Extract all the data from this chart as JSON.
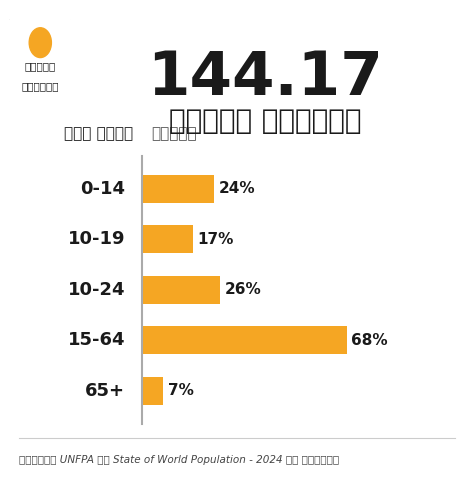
{
  "title_number": "144.17",
  "title_sub": "करोड़ भारतीय",
  "col_label_left": "आयु वर्ग",
  "col_label_right": "आबादी",
  "categories": [
    "0-14",
    "10-19",
    "10-24",
    "15-64",
    "65+"
  ],
  "values": [
    24,
    17,
    26,
    68,
    7
  ],
  "bar_color": "#F5A623",
  "bg_color": "#FFFFFF",
  "text_color": "#1a1a1a",
  "footnote": "आंकड़े UNFPA की State of World Population - 2024 के अनुसार",
  "logo_text_line1": "दैनिक",
  "logo_text_line2": "भास्कर",
  "divider_color": "#AAAAAA",
  "label_fontsize": 13,
  "value_fontsize": 11,
  "header_fontsize": 11
}
